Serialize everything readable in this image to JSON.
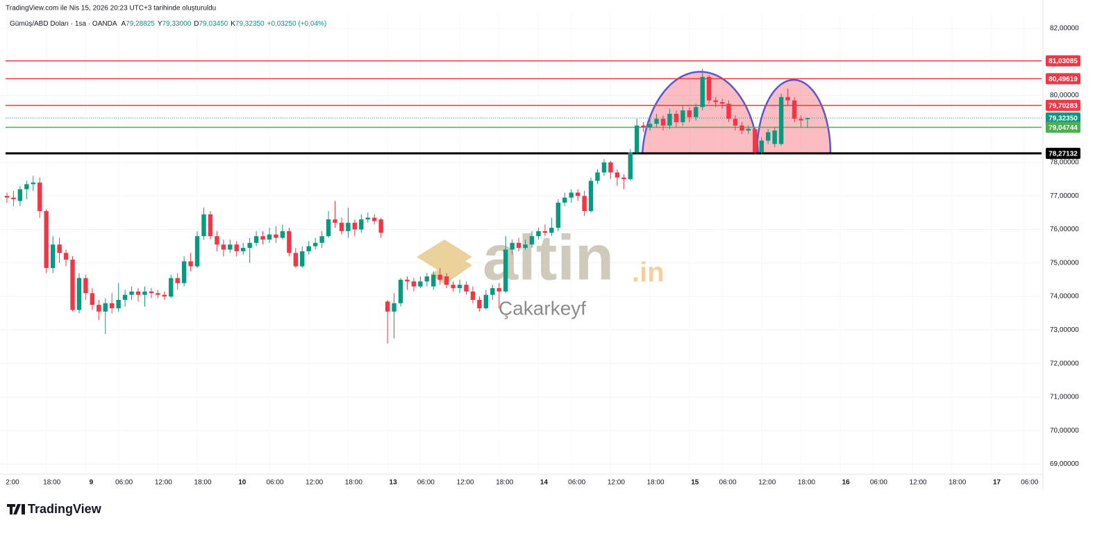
{
  "header": {
    "caption": "TradingView.com ile Nis 15, 2026 20:23 UTC+3 tarihinde oluşturuldu",
    "symbol": "Gümüş/ABD Doları · 1sa · OANDA",
    "ohlc": [
      {
        "key": "A",
        "value": "79,28825"
      },
      {
        "key": "Y",
        "value": "79,33000"
      },
      {
        "key": "D",
        "value": "79,03450"
      },
      {
        "key": "K",
        "value": "79,32350"
      }
    ],
    "change": "+0,03250 (+0,04%)"
  },
  "watermark": {
    "brand": "altin",
    "suffix": ".in",
    "author": "Çakarkeyf"
  },
  "footer": {
    "logo": "TradingView"
  },
  "chart_data": {
    "type": "candlestick",
    "up_color": "#089981",
    "down_color": "#f23645",
    "categories": [
      "2:00",
      null,
      null,
      null,
      null,
      null,
      "18:00",
      null,
      null,
      null,
      null,
      null,
      "9",
      null,
      null,
      null,
      null,
      "06:00",
      null,
      null,
      null,
      null,
      null,
      "12:00",
      null,
      null,
      null,
      null,
      null,
      "18:00",
      null,
      null,
      null,
      null,
      null,
      "10",
      null,
      null,
      null,
      null,
      "06:00",
      null,
      null,
      null,
      null,
      null,
      "12:00",
      null,
      null,
      null,
      null,
      null,
      "18:00",
      null,
      null,
      null,
      null,
      null,
      "13",
      null,
      null,
      null,
      null,
      "06:00",
      null,
      null,
      null,
      null,
      null,
      "12:00",
      null,
      null,
      null,
      null,
      null,
      "18:00",
      null,
      null,
      null,
      null,
      null,
      "14",
      null,
      null,
      null,
      null,
      "06:00",
      null,
      null,
      null,
      null,
      null,
      "12:00",
      null,
      null,
      null,
      null,
      null,
      "18:00",
      null,
      null,
      null,
      null,
      null,
      "15",
      null,
      null,
      null,
      null,
      "06:00",
      null,
      null,
      null,
      null,
      null,
      "12:00",
      null,
      null,
      null,
      null,
      null,
      "18:00",
      null,
      null,
      null,
      null,
      null,
      "16",
      null,
      null,
      null,
      null,
      "06:00",
      null,
      null,
      null,
      null,
      null,
      "12:00",
      null,
      null,
      null,
      null,
      null,
      "18:00",
      null,
      null,
      null,
      null,
      null,
      "17",
      null,
      null,
      null,
      null,
      "06:00"
    ],
    "open": [
      77.0,
      76.95,
      76.85,
      77.2,
      77.35,
      77.4,
      76.55,
      74.85,
      75.55,
      75.3,
      75.1,
      73.6,
      74.55,
      74.1,
      73.75,
      73.55,
      73.8,
      73.65,
      73.9,
      74.05,
      74.15,
      74.05,
      74.15,
      74.1,
      74.05,
      74.0,
      74.55,
      74.4,
      75.05,
      74.9,
      75.8,
      76.45,
      75.8,
      75.55,
      75.4,
      75.55,
      75.35,
      75.45,
      75.6,
      75.8,
      75.7,
      75.85,
      75.75,
      75.95,
      75.3,
      74.9,
      75.35,
      75.5,
      75.6,
      75.8,
      76.3,
      76.2,
      75.95,
      76.2,
      76.0,
      76.3,
      76.35,
      76.3,
      73.85,
      73.55,
      73.8,
      74.5,
      74.45,
      74.3,
      74.45,
      74.3,
      74.65,
      74.6,
      74.35,
      74.25,
      74.35,
      74.15,
      73.9,
      73.65,
      74.05,
      74.25,
      74.15,
      75.4,
      75.6,
      75.45,
      75.55,
      75.8,
      75.95,
      75.9,
      76.05,
      76.8,
      76.95,
      77.1,
      77.0,
      76.55,
      77.45,
      77.7,
      78.0,
      77.7,
      77.55,
      77.5,
      78.3,
      79.1,
      79.05,
      79.15,
      79.3,
      79.1,
      79.45,
      79.2,
      79.55,
      79.35,
      79.65,
      80.55,
      79.85,
      79.8,
      79.75,
      79.3,
      79.1,
      78.95,
      79.0,
      78.3,
      78.65,
      78.55,
      78.55,
      79.95,
      79.85,
      79.3,
      79.28825,
      null,
      null,
      null,
      null,
      null,
      null,
      null,
      null,
      null,
      null,
      null,
      null,
      null,
      null,
      null,
      null,
      null,
      null,
      null,
      null,
      null,
      null,
      null,
      null,
      null,
      null,
      null,
      null,
      null,
      null,
      null,
      null,
      null
    ],
    "high": [
      77.1,
      77.15,
      77.3,
      77.45,
      77.6,
      77.55,
      76.6,
      75.8,
      75.75,
      75.4,
      75.2,
      74.7,
      74.65,
      74.25,
      73.9,
      73.95,
      74.1,
      74.4,
      74.2,
      74.3,
      74.25,
      74.3,
      74.25,
      74.2,
      74.15,
      74.65,
      74.7,
      75.2,
      75.3,
      75.95,
      76.65,
      76.55,
      75.95,
      75.7,
      75.7,
      75.65,
      75.6,
      75.75,
      75.95,
      75.95,
      76.05,
      76.1,
      76.15,
      76.05,
      75.45,
      75.5,
      75.65,
      75.75,
      75.95,
      76.55,
      76.85,
      76.35,
      76.65,
      76.3,
      76.45,
      76.5,
      76.45,
      76.35,
      73.9,
      74.1,
      74.55,
      74.6,
      74.55,
      74.6,
      74.7,
      74.75,
      74.85,
      74.7,
      74.45,
      74.5,
      74.45,
      74.3,
      74.0,
      74.2,
      74.35,
      74.4,
      75.8,
      75.7,
      75.75,
      75.7,
      75.95,
      76.05,
      76.15,
      76.35,
      76.9,
      77.1,
      77.2,
      77.2,
      77.15,
      77.55,
      77.8,
      78.1,
      78.05,
      77.8,
      77.65,
      78.4,
      79.3,
      79.2,
      79.3,
      79.45,
      79.4,
      79.6,
      79.55,
      79.7,
      79.65,
      79.75,
      80.8,
      80.6,
      79.95,
      79.9,
      79.85,
      79.4,
      79.2,
      79.1,
      79.05,
      78.75,
      79.0,
      79.05,
      80.05,
      80.2,
      79.95,
      79.4,
      79.33,
      null,
      null,
      null,
      null,
      null,
      null,
      null,
      null,
      null,
      null,
      null,
      null,
      null,
      null,
      null,
      null,
      null,
      null,
      null,
      null,
      null,
      null,
      null,
      null,
      null,
      null,
      null,
      null,
      null,
      null,
      null,
      null,
      null
    ],
    "low": [
      76.8,
      76.7,
      76.7,
      76.9,
      77.15,
      76.35,
      74.7,
      74.7,
      75.0,
      74.9,
      73.55,
      73.5,
      73.9,
      73.6,
      73.3,
      72.88,
      73.5,
      73.55,
      73.7,
      73.9,
      73.85,
      73.7,
      73.95,
      73.95,
      73.9,
      73.95,
      74.2,
      74.3,
      74.75,
      74.85,
      75.7,
      75.7,
      75.35,
      75.2,
      75.3,
      75.2,
      75.25,
      75.0,
      75.5,
      75.55,
      75.6,
      75.6,
      75.7,
      75.2,
      74.85,
      74.85,
      75.25,
      75.4,
      75.45,
      75.75,
      76.05,
      75.85,
      75.75,
      75.8,
      75.9,
      76.2,
      76.15,
      75.75,
      72.6,
      72.75,
      73.7,
      74.2,
      74.15,
      74.25,
      74.3,
      74.2,
      74.35,
      74.25,
      74.15,
      74.1,
      74.05,
      73.8,
      73.55,
      73.6,
      73.9,
      73.65,
      74.1,
      75.25,
      75.35,
      75.4,
      75.45,
      75.7,
      75.8,
      75.8,
      75.95,
      76.7,
      76.8,
      76.85,
      76.4,
      76.5,
      77.35,
      77.6,
      77.5,
      77.3,
      77.2,
      77.45,
      78.25,
      78.9,
      78.95,
      79.05,
      78.95,
      79.0,
      79.05,
      79.1,
      79.2,
      79.25,
      79.55,
      79.75,
      79.65,
      79.6,
      79.2,
      78.95,
      78.85,
      78.85,
      78.25,
      78.25,
      78.55,
      78.45,
      78.5,
      79.7,
      79.2,
      79.05,
      79.0345,
      null,
      null,
      null,
      null,
      null,
      null,
      null,
      null,
      null,
      null,
      null,
      null,
      null,
      null,
      null,
      null,
      null,
      null,
      null,
      null,
      null,
      null,
      null,
      null,
      null,
      null,
      null,
      null,
      null,
      null,
      null,
      null,
      null
    ],
    "close": [
      76.95,
      76.9,
      77.2,
      77.35,
      77.4,
      76.55,
      74.85,
      75.55,
      75.3,
      75.1,
      73.6,
      74.55,
      74.1,
      73.75,
      73.55,
      73.8,
      73.65,
      73.9,
      74.05,
      74.15,
      74.05,
      74.15,
      74.1,
      74.05,
      74.0,
      74.55,
      74.4,
      75.05,
      74.9,
      75.8,
      76.45,
      75.8,
      75.55,
      75.4,
      75.55,
      75.35,
      75.45,
      75.6,
      75.8,
      75.7,
      75.85,
      75.75,
      75.95,
      75.3,
      74.9,
      75.35,
      75.5,
      75.6,
      75.8,
      76.3,
      76.2,
      75.95,
      76.2,
      76.0,
      76.3,
      76.35,
      76.25,
      75.9,
      73.55,
      73.8,
      74.5,
      74.45,
      74.3,
      74.45,
      74.6,
      74.65,
      74.5,
      74.35,
      74.25,
      74.35,
      74.15,
      73.9,
      73.65,
      74.05,
      74.25,
      74.15,
      75.4,
      75.6,
      75.45,
      75.55,
      75.8,
      75.95,
      75.9,
      76.05,
      76.8,
      76.95,
      77.1,
      77.0,
      76.55,
      77.45,
      77.7,
      78.0,
      77.7,
      77.55,
      77.5,
      78.3,
      79.1,
      79.05,
      79.15,
      79.3,
      79.1,
      79.45,
      79.2,
      79.55,
      79.35,
      79.65,
      80.55,
      79.85,
      79.8,
      79.75,
      79.3,
      79.1,
      78.95,
      79.0,
      78.3,
      78.65,
      78.9,
      78.95,
      79.95,
      79.85,
      79.3,
      79.25,
      79.3235,
      null,
      null,
      null,
      null,
      null,
      null,
      null,
      null,
      null,
      null,
      null,
      null,
      null,
      null,
      null,
      null,
      null,
      null,
      null,
      null,
      null,
      null,
      null,
      null,
      null,
      null,
      null,
      null,
      null,
      null,
      null,
      null,
      null
    ],
    "ylim": [
      68.7,
      82.43
    ],
    "yticks": [
      {
        "value": 82,
        "label": "82,00000"
      },
      {
        "value": 81,
        "label": "81,00000"
      },
      {
        "value": 80,
        "label": "80,00000"
      },
      {
        "value": 79,
        "label": "79,00000"
      },
      {
        "value": 78,
        "label": "78,00000"
      },
      {
        "value": 77,
        "label": "77,00000"
      },
      {
        "value": 76,
        "label": "76,00000"
      },
      {
        "value": 75,
        "label": "75,00000"
      },
      {
        "value": 74,
        "label": "74,00000"
      },
      {
        "value": 73,
        "label": "73,00000"
      },
      {
        "value": 72,
        "label": "72,00000"
      },
      {
        "value": 71,
        "label": "71,00000"
      },
      {
        "value": 70,
        "label": "70,00000"
      },
      {
        "value": 69,
        "label": "69,00000"
      }
    ],
    "grid": true,
    "levels": [
      {
        "value": 81.03085,
        "label": "81,03085",
        "color": "#f23645",
        "style": "solid"
      },
      {
        "value": 80.49619,
        "label": "80,49619",
        "color": "#f23645",
        "style": "solid"
      },
      {
        "value": 79.70283,
        "label": "79,70283",
        "color": "#f23645",
        "style": "solid"
      },
      {
        "value": 79.3235,
        "label": "79,32350",
        "color": "#089981",
        "style": "dotted"
      },
      {
        "value": 79.04744,
        "label": "79,04744",
        "color": "#4caf50",
        "style": "solid"
      },
      {
        "value": 78.27132,
        "label": "78,27132",
        "color": "#000000",
        "style": "bold"
      }
    ]
  }
}
